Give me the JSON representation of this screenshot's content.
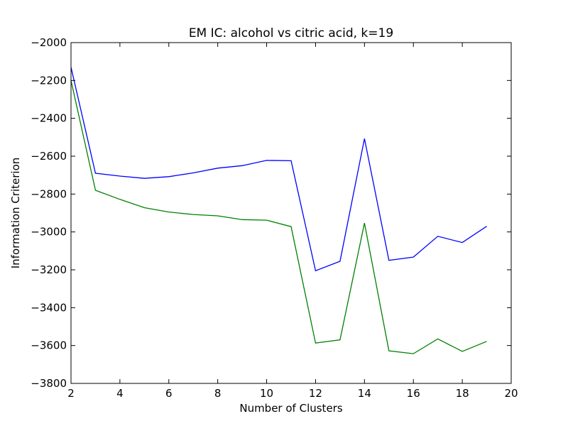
{
  "chart_data": {
    "type": "line",
    "title": "EM IC: alcohol vs citric acid, k=19",
    "xlabel": "Number of Clusters",
    "ylabel": "Information Criterion",
    "xlim": [
      2,
      20
    ],
    "ylim": [
      -3800,
      -2000
    ],
    "x_ticks": [
      "2",
      "4",
      "6",
      "8",
      "10",
      "12",
      "14",
      "16",
      "18",
      "20"
    ],
    "y_ticks": [
      "−2000",
      "−2200",
      "−2400",
      "−2600",
      "−2800",
      "−3000",
      "−3200",
      "−3400",
      "−3600",
      "−3800"
    ],
    "x": [
      2,
      3,
      4,
      5,
      6,
      7,
      8,
      9,
      10,
      11,
      12,
      13,
      14,
      15,
      16,
      17,
      18,
      19
    ],
    "grid": false,
    "series": [
      {
        "color": "#0000ff",
        "values": [
          -2130,
          -2690,
          -2705,
          -2717,
          -2708,
          -2688,
          -2663,
          -2650,
          -2622,
          -2624,
          -3205,
          -3155,
          -2507,
          -3150,
          -3133,
          -3023,
          -3056,
          -2970
        ]
      },
      {
        "color": "#008000",
        "values": [
          -2200,
          -2780,
          -2828,
          -2872,
          -2895,
          -2908,
          -2915,
          -2935,
          -2938,
          -2972,
          -3587,
          -3570,
          -2953,
          -3628,
          -3643,
          -3565,
          -3631,
          -3578
        ]
      }
    ]
  }
}
